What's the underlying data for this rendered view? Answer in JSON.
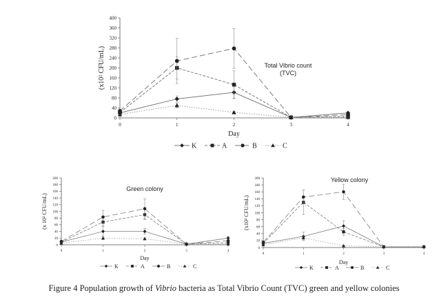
{
  "caption": {
    "prefix": "Figure 4 Population growth of ",
    "italic": "Vibrio",
    "suffix": " bacteria as Total Vibrio Count (TVC) green and yellow colonies"
  },
  "chart_data": [
    {
      "type": "line",
      "title": "Total Vibrio count\n(TVC)",
      "xlabel": "Day",
      "ylabel": "(x10² CFU/mL)",
      "x": [
        0,
        1,
        2,
        3,
        4
      ],
      "xlim": [
        0,
        4
      ],
      "ylim": [
        0,
        400
      ],
      "yticks": [
        0,
        40,
        80,
        120,
        160,
        200,
        240,
        280,
        320,
        360,
        400
      ],
      "legend_position": "bottom",
      "series": [
        {
          "name": "K",
          "marker": "diamond",
          "dash": "solid",
          "color": "#7a7a7a",
          "values": [
            20,
            76,
            102,
            2,
            20
          ],
          "err": [
            3,
            12,
            25,
            1,
            3
          ]
        },
        {
          "name": "A",
          "marker": "square",
          "dash": "short-dash",
          "color": "#7a7a7a",
          "values": [
            22,
            200,
            133,
            2,
            6
          ],
          "err": [
            4,
            45,
            55,
            1,
            2
          ]
        },
        {
          "name": "B",
          "marker": "circle",
          "dash": "long-dash",
          "color": "#7a7a7a",
          "values": [
            28,
            228,
            278,
            2,
            13
          ],
          "err": [
            5,
            90,
            80,
            1,
            3
          ]
        },
        {
          "name": "C",
          "marker": "triangle",
          "dash": "dotted",
          "color": "#9a9a9a",
          "values": [
            14,
            50,
            22,
            2,
            3
          ],
          "err": [
            2,
            10,
            5,
            1,
            1
          ]
        }
      ]
    },
    {
      "type": "line",
      "title": "Green colony",
      "xlabel": "Day",
      "ylabel": "(x 10² CFU/mL)",
      "x": [
        0,
        1,
        2,
        3,
        4
      ],
      "xlim": [
        0,
        4
      ],
      "ylim": [
        0,
        200
      ],
      "yticks": [
        0,
        20,
        40,
        60,
        80,
        100,
        120,
        140,
        160,
        180,
        200
      ],
      "legend_position": "bottom",
      "series": [
        {
          "name": "K",
          "marker": "diamond",
          "dash": "solid",
          "color": "#7a7a7a",
          "values": [
            8,
            40,
            40,
            2,
            20
          ],
          "err": [
            2,
            15,
            8,
            1,
            5
          ]
        },
        {
          "name": "A",
          "marker": "square",
          "dash": "short-dash",
          "color": "#7a7a7a",
          "values": [
            8,
            68,
            90,
            2,
            6
          ],
          "err": [
            2,
            12,
            15,
            1,
            2
          ]
        },
        {
          "name": "B",
          "marker": "circle",
          "dash": "long-dash",
          "color": "#7a7a7a",
          "values": [
            10,
            83,
            108,
            2,
            12
          ],
          "err": [
            2,
            20,
            30,
            1,
            3
          ]
        },
        {
          "name": "C",
          "marker": "triangle",
          "dash": "dotted",
          "color": "#9a9a9a",
          "values": [
            5,
            20,
            18,
            2,
            2
          ],
          "err": [
            1,
            5,
            4,
            1,
            1
          ]
        }
      ]
    },
    {
      "type": "line",
      "title": "Yellow  colony",
      "xlabel": "Day",
      "ylabel": "(x10² CFU/mL)",
      "x": [
        0,
        1,
        2,
        3,
        4
      ],
      "xlim": [
        0,
        4
      ],
      "ylim": [
        0,
        200
      ],
      "yticks": [
        0,
        20,
        40,
        60,
        80,
        100,
        120,
        140,
        160,
        180,
        200
      ],
      "legend_position": "bottom",
      "series": [
        {
          "name": "K",
          "marker": "diamond",
          "dash": "solid",
          "color": "#7a7a7a",
          "values": [
            12,
            32,
            62,
            2,
            2
          ],
          "err": [
            2,
            12,
            15,
            1,
            1
          ]
        },
        {
          "name": "A",
          "marker": "square",
          "dash": "short-dash",
          "color": "#7a7a7a",
          "values": [
            12,
            130,
            45,
            2,
            2
          ],
          "err": [
            2,
            35,
            10,
            1,
            1
          ]
        },
        {
          "name": "B",
          "marker": "circle",
          "dash": "long-dash",
          "color": "#7a7a7a",
          "values": [
            15,
            145,
            160,
            2,
            2
          ],
          "err": [
            3,
            20,
            22,
            1,
            1
          ]
        },
        {
          "name": "C",
          "marker": "triangle",
          "dash": "dotted",
          "color": "#9a9a9a",
          "values": [
            8,
            28,
            5,
            2,
            2
          ],
          "err": [
            2,
            6,
            2,
            1,
            1
          ]
        }
      ]
    }
  ]
}
